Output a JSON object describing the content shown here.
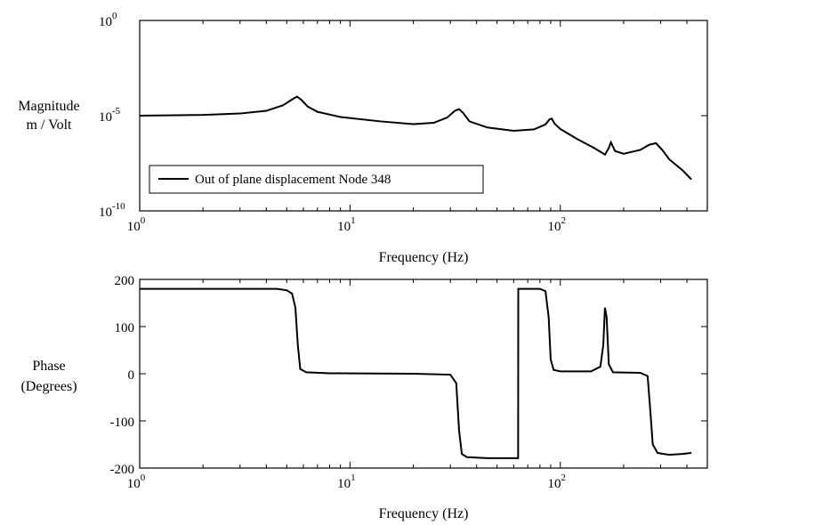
{
  "chart_data": [
    {
      "type": "line",
      "id": "magnitude",
      "title": "",
      "xlabel": "Frequency (Hz)",
      "ylabel": [
        "Magnitude",
        "m / Volt"
      ],
      "xscale": "log",
      "yscale": "log",
      "xlim": [
        1,
        500
      ],
      "ylim": [
        1e-10,
        1
      ],
      "grid": false,
      "x_ticks": [
        {
          "value": 1,
          "base": "10",
          "exp": "0"
        },
        {
          "value": 10,
          "base": "10",
          "exp": "1"
        },
        {
          "value": 100,
          "base": "10",
          "exp": "2"
        }
      ],
      "y_ticks": [
        {
          "value": 1,
          "base": "10",
          "exp": "0"
        },
        {
          "value": 1e-05,
          "base": "10",
          "exp": "-5"
        },
        {
          "value": 1e-10,
          "base": "10",
          "exp": "-10"
        }
      ],
      "legend": {
        "placement": "bottom-left",
        "entries": [
          "Out of plane displacement Node 348"
        ]
      },
      "series": [
        {
          "name": "Out of plane displacement Node 348",
          "points": [
            [
              1.0,
              1e-05
            ],
            [
              1.5,
              1.05e-05
            ],
            [
              2.0,
              1.1e-05
            ],
            [
              3.0,
              1.3e-05
            ],
            [
              4.0,
              1.8e-05
            ],
            [
              4.8,
              3.5e-05
            ],
            [
              5.4,
              8e-05
            ],
            [
              5.6,
              0.0001
            ],
            [
              5.85,
              7e-05
            ],
            [
              6.3,
              3e-05
            ],
            [
              7.0,
              1.6e-05
            ],
            [
              9.0,
              8.5e-06
            ],
            [
              14.0,
              5e-06
            ],
            [
              20.0,
              3.6e-06
            ],
            [
              25.0,
              4.2e-06
            ],
            [
              29.0,
              8e-06
            ],
            [
              31.5,
              1.8e-05
            ],
            [
              33.0,
              2.2e-05
            ],
            [
              34.5,
              1.4e-05
            ],
            [
              37.0,
              5e-06
            ],
            [
              45.0,
              2.4e-06
            ],
            [
              60.0,
              1.6e-06
            ],
            [
              75.0,
              1.9e-06
            ],
            [
              85.0,
              3.5e-06
            ],
            [
              89.0,
              6.5e-06
            ],
            [
              91.0,
              7e-06
            ],
            [
              94.0,
              3.8e-06
            ],
            [
              100.0,
              2e-06
            ],
            [
              120.0,
              6e-07
            ],
            [
              145.0,
              2e-07
            ],
            [
              163.0,
              9e-08
            ],
            [
              170.0,
              2e-07
            ],
            [
              174.0,
              4e-07
            ],
            [
              182.0,
              1.4e-07
            ],
            [
              200.0,
              1e-07
            ],
            [
              240.0,
              1.6e-07
            ],
            [
              265.0,
              3e-07
            ],
            [
              285.0,
              3.6e-07
            ],
            [
              305.0,
              1.6e-07
            ],
            [
              330.0,
              5e-08
            ],
            [
              380.0,
              1.4e-08
            ],
            [
              420.0,
              4.5e-09
            ]
          ]
        }
      ]
    },
    {
      "type": "line",
      "id": "phase",
      "title": "",
      "xlabel": "Frequency (Hz)",
      "ylabel": [
        "Phase",
        "(Degrees)"
      ],
      "xscale": "log",
      "yscale": "linear",
      "xlim": [
        1,
        500
      ],
      "ylim": [
        -200,
        200
      ],
      "grid": false,
      "x_ticks": [
        {
          "value": 1,
          "base": "10",
          "exp": "0"
        },
        {
          "value": 10,
          "base": "10",
          "exp": "1"
        },
        {
          "value": 100,
          "base": "10",
          "exp": "2"
        }
      ],
      "y_ticks": [
        {
          "value": 200,
          "label": "200"
        },
        {
          "value": 100,
          "label": "100"
        },
        {
          "value": 0,
          "label": "0"
        },
        {
          "value": -100,
          "label": "-100"
        },
        {
          "value": -200,
          "label": "-200"
        }
      ],
      "series": [
        {
          "name": "Phase",
          "points": [
            [
              1.0,
              180
            ],
            [
              4.5,
              180
            ],
            [
              5.0,
              177
            ],
            [
              5.3,
              170
            ],
            [
              5.5,
              140
            ],
            [
              5.65,
              60
            ],
            [
              5.8,
              10
            ],
            [
              6.2,
              3
            ],
            [
              8.0,
              1
            ],
            [
              20.0,
              0
            ],
            [
              30.0,
              -2
            ],
            [
              32.0,
              -20
            ],
            [
              33.0,
              -120
            ],
            [
              34.0,
              -170
            ],
            [
              36.0,
              -177
            ],
            [
              45.0,
              -179
            ],
            [
              63.0,
              -179
            ],
            [
              63.1,
              180
            ],
            [
              80.0,
              180
            ],
            [
              85.0,
              175
            ],
            [
              88.0,
              120
            ],
            [
              90.0,
              30
            ],
            [
              93.0,
              8
            ],
            [
              100.0,
              5
            ],
            [
              140.0,
              5
            ],
            [
              155.0,
              15
            ],
            [
              160.0,
              60
            ],
            [
              163.0,
              140
            ],
            [
              166.0,
              120
            ],
            [
              170.0,
              20
            ],
            [
              178.0,
              3
            ],
            [
              240.0,
              2
            ],
            [
              260.0,
              -5
            ],
            [
              268.0,
              -80
            ],
            [
              275.0,
              -150
            ],
            [
              290.0,
              -168
            ],
            [
              330.0,
              -172
            ],
            [
              380.0,
              -170
            ],
            [
              420.0,
              -168
            ]
          ]
        }
      ]
    }
  ]
}
